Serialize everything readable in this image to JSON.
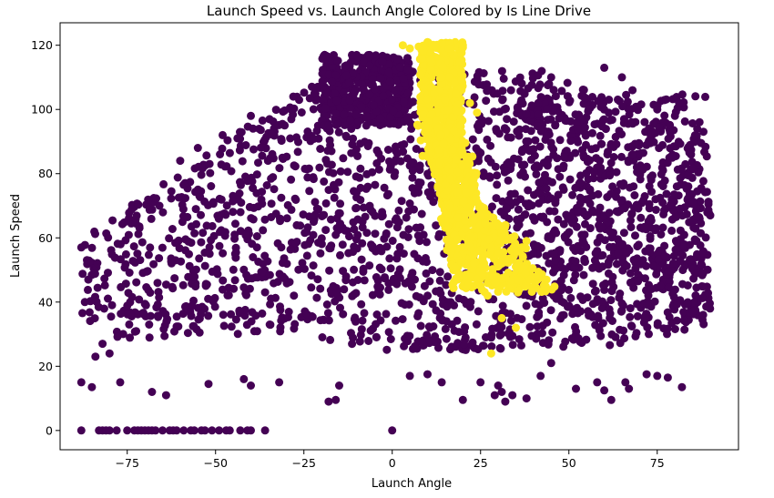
{
  "chart_data": {
    "type": "scatter",
    "title": "Launch Speed vs. Launch Angle Colored by Is Line Drive",
    "xlabel": "Launch Angle",
    "ylabel": "Launch Speed",
    "xlim": [
      -94,
      98
    ],
    "ylim": [
      -6,
      127
    ],
    "xticks": [
      -75,
      -50,
      -25,
      0,
      25,
      50,
      75
    ],
    "xtick_labels": [
      "−75",
      "−50",
      "−25",
      "0",
      "25",
      "50",
      "75"
    ],
    "yticks": [
      0,
      20,
      40,
      60,
      80,
      100,
      120
    ],
    "ytick_labels": [
      "0",
      "20",
      "40",
      "60",
      "80",
      "100",
      "120"
    ],
    "grid": false,
    "legend": "none",
    "colors": {
      "not_line_drive": "#440154",
      "line_drive": "#fde725"
    },
    "series": [
      {
        "category": "not line drive",
        "color": "#440154",
        "regions": [
          {
            "angle_range": [
              -88,
              90
            ],
            "speed_range": [
              25,
              112
            ]
          },
          {
            "angle_range": [
              -20,
              5
            ],
            "speed_range": [
              95,
              117
            ]
          },
          {
            "angle_range": [
              35,
              90
            ],
            "speed_range": [
              35,
              105
            ]
          }
        ],
        "points": [
          [
            -88,
            15
          ],
          [
            -85,
            13.5
          ],
          [
            -82,
            27
          ],
          [
            -84,
            23
          ],
          [
            -80,
            24
          ],
          [
            -77,
            15
          ],
          [
            -68,
            12
          ],
          [
            -64,
            11
          ],
          [
            -52,
            14.5
          ],
          [
            -42,
            16
          ],
          [
            -40,
            14
          ],
          [
            -32,
            15
          ],
          [
            -18,
            9
          ],
          [
            -16,
            9.5
          ],
          [
            -15,
            14
          ],
          [
            5,
            17
          ],
          [
            10,
            17.5
          ],
          [
            14,
            15
          ],
          [
            20,
            9.5
          ],
          [
            25,
            15
          ],
          [
            29,
            11
          ],
          [
            30,
            14
          ],
          [
            31,
            12
          ],
          [
            32,
            9
          ],
          [
            34,
            11
          ],
          [
            38,
            10
          ],
          [
            42,
            17
          ],
          [
            45,
            21
          ],
          [
            52,
            13
          ],
          [
            58,
            15
          ],
          [
            60,
            12.5
          ],
          [
            62,
            9.5
          ],
          [
            66,
            15
          ],
          [
            67,
            13
          ],
          [
            72,
            17.5
          ],
          [
            75,
            17
          ],
          [
            78,
            16.5
          ],
          [
            82,
            13.5
          ],
          [
            -87,
            40
          ],
          [
            -88,
            57
          ],
          [
            -86,
            47
          ],
          [
            88,
            36
          ],
          [
            88,
            49
          ],
          [
            90,
            67
          ],
          [
            45,
            110
          ],
          [
            60,
            113
          ],
          [
            65,
            110
          ],
          [
            68,
            106
          ],
          [
            75,
            100
          ],
          [
            80,
            98
          ],
          [
            -22,
            105
          ],
          [
            -28,
            104
          ],
          [
            -40,
            98
          ],
          [
            -48,
            92
          ],
          [
            -55,
            88
          ],
          [
            -60,
            84
          ],
          [
            -88,
            0
          ],
          [
            -83,
            0
          ],
          [
            -82,
            0
          ],
          [
            -81,
            0
          ],
          [
            -80,
            0
          ],
          [
            -78,
            0
          ],
          [
            -75,
            0
          ],
          [
            -73,
            0
          ],
          [
            -72,
            0
          ],
          [
            -71,
            0
          ],
          [
            -70,
            0
          ],
          [
            -69,
            0
          ],
          [
            -68,
            0
          ],
          [
            -67,
            0
          ],
          [
            -65,
            0
          ],
          [
            -63,
            0
          ],
          [
            -62,
            0
          ],
          [
            -61,
            0
          ],
          [
            -59,
            0
          ],
          [
            -57,
            0
          ],
          [
            -56,
            0
          ],
          [
            -54,
            0
          ],
          [
            -53,
            0
          ],
          [
            -51,
            0
          ],
          [
            -49,
            0
          ],
          [
            -47,
            0
          ],
          [
            -46,
            0
          ],
          [
            -43,
            0
          ],
          [
            -41,
            0
          ],
          [
            -40,
            0
          ],
          [
            -36,
            0
          ],
          [
            0,
            0
          ]
        ]
      },
      {
        "category": "line drive",
        "color": "#fde725",
        "regions": [
          {
            "angle_range": [
              7,
              20
            ],
            "speed_range": [
              85,
              121
            ]
          },
          {
            "angle_range": [
              13,
              26
            ],
            "speed_range": [
              65,
              95
            ]
          },
          {
            "angle_range": [
              18,
              38
            ],
            "speed_range": [
              45,
              65
            ]
          }
        ],
        "points": [
          [
            3,
            120
          ],
          [
            5,
            119
          ],
          [
            10,
            121
          ],
          [
            12,
            120
          ],
          [
            16,
            119
          ],
          [
            20,
            120
          ],
          [
            18,
            105
          ],
          [
            14,
            110
          ],
          [
            22,
            102
          ],
          [
            24,
            99
          ],
          [
            11,
            107
          ],
          [
            28,
            57
          ],
          [
            30,
            55
          ],
          [
            33,
            53
          ],
          [
            35,
            51
          ],
          [
            37,
            54
          ],
          [
            38,
            59
          ],
          [
            39,
            47
          ],
          [
            25,
            45
          ],
          [
            27,
            42
          ],
          [
            31,
            35
          ],
          [
            35,
            32
          ],
          [
            28,
            24
          ],
          [
            26,
            52
          ],
          [
            22,
            48
          ]
        ]
      }
    ]
  }
}
